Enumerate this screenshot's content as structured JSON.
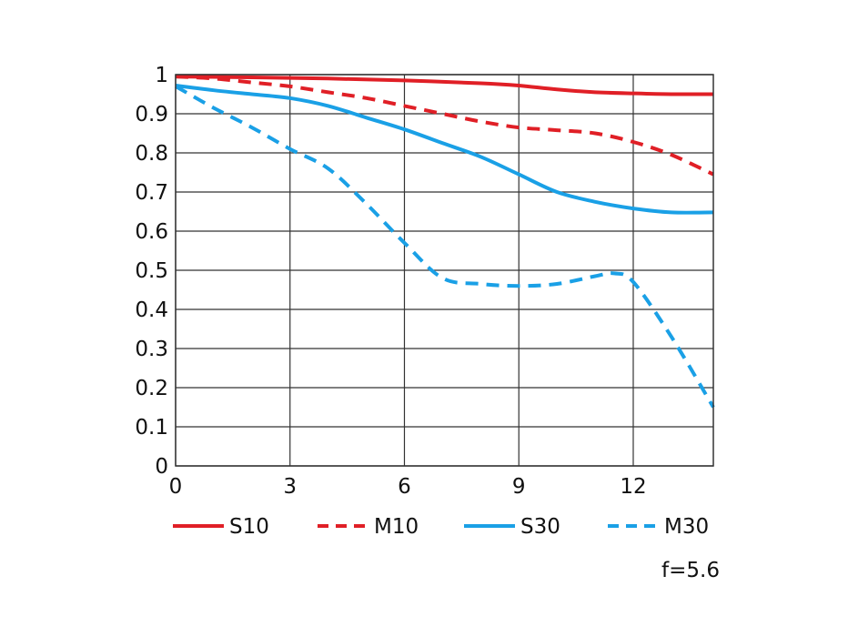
{
  "chart_data": {
    "type": "line",
    "title": "",
    "xlabel": "",
    "ylabel": "",
    "xlim": [
      0,
      14.1
    ],
    "ylim": [
      0,
      1
    ],
    "x_ticks": [
      0,
      3,
      6,
      9,
      12
    ],
    "x_tick_labels": [
      "0",
      "3",
      "6",
      "9",
      "12"
    ],
    "y_ticks": [
      0,
      0.1,
      0.2,
      0.3,
      0.4,
      0.5,
      0.6,
      0.7,
      0.8,
      0.9,
      1
    ],
    "y_tick_labels": [
      "0",
      "0.1",
      "0.2",
      "0.3",
      "0.4",
      "0.5",
      "0.6",
      "0.7",
      "0.8",
      "0.9",
      "1"
    ],
    "grid": true,
    "legend_position": "bottom",
    "series": [
      {
        "name": "S10",
        "color": "#e01f26",
        "dashed": false,
        "x": [
          0,
          2,
          4,
          6,
          8,
          9,
          10,
          11,
          12,
          13,
          14.1
        ],
        "y": [
          0.995,
          0.993,
          0.99,
          0.985,
          0.978,
          0.972,
          0.962,
          0.955,
          0.952,
          0.95,
          0.95
        ]
      },
      {
        "name": "M10",
        "color": "#e01f26",
        "dashed": true,
        "x": [
          0,
          1,
          2,
          3,
          4,
          5,
          6,
          7,
          8,
          9,
          10,
          11,
          12,
          13,
          14.1
        ],
        "y": [
          0.995,
          0.99,
          0.98,
          0.97,
          0.955,
          0.94,
          0.92,
          0.9,
          0.88,
          0.865,
          0.858,
          0.85,
          0.828,
          0.795,
          0.745
        ]
      },
      {
        "name": "S30",
        "color": "#1aa0e6",
        "dashed": false,
        "x": [
          0,
          1,
          2,
          3,
          4,
          5,
          6,
          7,
          8,
          9,
          10,
          11,
          12,
          13,
          14.1
        ],
        "y": [
          0.972,
          0.96,
          0.95,
          0.94,
          0.92,
          0.89,
          0.86,
          0.825,
          0.79,
          0.745,
          0.7,
          0.675,
          0.658,
          0.648,
          0.648
        ]
      },
      {
        "name": "M30",
        "color": "#1aa0e6",
        "dashed": true,
        "x": [
          0,
          1,
          2,
          3,
          4,
          5,
          6,
          7,
          8,
          9,
          10,
          11,
          11.5,
          12,
          13,
          14.1
        ],
        "y": [
          0.97,
          0.915,
          0.865,
          0.81,
          0.76,
          0.67,
          0.57,
          0.48,
          0.465,
          0.46,
          0.465,
          0.485,
          0.492,
          0.47,
          0.33,
          0.15
        ]
      }
    ],
    "note": "f=5.6"
  }
}
